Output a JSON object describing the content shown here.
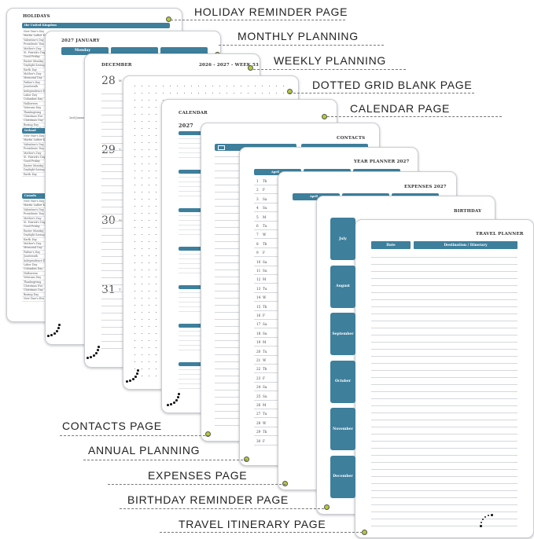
{
  "feature_labels": {
    "holiday": "HOLIDAY REMINDER PAGE",
    "monthly": "MONTHLY PLANNING",
    "weekly": "WEEKLY PLANNING",
    "dotted": "DOTTED GRID BLANK PAGE",
    "calendar": "CALENDAR PAGE",
    "contacts": "CONTACTS PAGE",
    "annual": "ANNUAL PLANNING",
    "expenses": "EXPENSES PAGE",
    "birthday": "BIRTHDAY REMINDER PAGE",
    "travel": "TRAVEL ITINERARY PAGE"
  },
  "pages": {
    "holidays": {
      "title": "HOLIDAYS",
      "us_header": "the United Kingdom",
      "ireland_header": "Ireland",
      "canada_header": "Canada",
      "items": [
        "New Year's Day",
        "Martin Luther King",
        "Valentine's Day",
        "Presidents' Day",
        "Mother's Day",
        "St. Patrick's Day",
        "Good Friday",
        "Easter Monday",
        "Daylight Saving",
        "Earth Day",
        "Mother's Day",
        "Memorial Day",
        "Father's Day",
        "Juneteenth",
        "Independence Day",
        "Labor Day",
        "Columbus Day",
        "Halloween",
        "Veterans Day",
        "Thanksgiving",
        "Christmas Eve",
        "Christmas Day",
        "Boxing Day",
        "New Year's Eve"
      ]
    },
    "monthly": {
      "title": "2027 JANUARY",
      "day_col": "Monday",
      "entry_a": "2nd January"
    },
    "weekly": {
      "title": "DECEMBER",
      "week": "2026 - 2027 - WEEK 53",
      "days": [
        "28",
        "29",
        "30",
        "31"
      ],
      "day_names": [
        "M",
        "T",
        "W",
        "T"
      ]
    },
    "calendar": {
      "title": "CALENDAR",
      "year": "2027"
    },
    "contacts": {
      "title": "CONTACTS"
    },
    "year_planner": {
      "title": "YEAR PLANNER 2027",
      "col": "April",
      "days": [
        "1",
        "2",
        "3",
        "4",
        "5",
        "6",
        "7",
        "8",
        "9",
        "10",
        "11",
        "12",
        "13",
        "14",
        "15",
        "16",
        "17",
        "18",
        "19",
        "20",
        "21",
        "22",
        "23",
        "24",
        "25",
        "26",
        "27",
        "28",
        "29",
        "30"
      ],
      "weekdays": [
        "Th",
        "F",
        "Sa",
        "Su",
        "M",
        "Tu",
        "W",
        "Th",
        "F",
        "Sa",
        "Su",
        "M",
        "Tu",
        "W",
        "Th",
        "F",
        "Sa",
        "Su",
        "M",
        "Tu",
        "W",
        "Th",
        "F",
        "Sa",
        "Su",
        "M",
        "Tu",
        "W",
        "Th",
        "F"
      ]
    },
    "expenses": {
      "title": "EXPENSES 2027",
      "col": "April"
    },
    "birthday": {
      "title": "BIRTHDAY",
      "months": [
        "July",
        "August",
        "September",
        "October",
        "November",
        "December"
      ]
    },
    "travel": {
      "title": "TRAVEL PLANNER",
      "col_date": "Date",
      "col_dest": "Destination / Itinerary"
    }
  },
  "colors": {
    "accent": "#3e7f9c",
    "marker": "#b5c938"
  }
}
